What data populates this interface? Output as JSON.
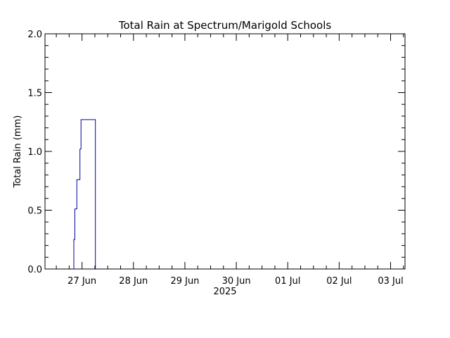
{
  "chart_data": {
    "type": "line",
    "title": "Total Rain at Spectrum/Marigold Schools",
    "xlabel": "2025",
    "ylabel": "Total Rain (mm)",
    "ylim": [
      0,
      2.0
    ],
    "xlim_days": [
      -0.72,
      6.28
    ],
    "x_ticks": [
      {
        "day": 0,
        "label": "27 Jun"
      },
      {
        "day": 1,
        "label": "28 Jun"
      },
      {
        "day": 2,
        "label": "29 Jun"
      },
      {
        "day": 3,
        "label": "30 Jun"
      },
      {
        "day": 4,
        "label": "01 Jul"
      },
      {
        "day": 5,
        "label": "02 Jul"
      },
      {
        "day": 6,
        "label": "03 Jul"
      }
    ],
    "y_ticks": [
      {
        "value": 0.0,
        "label": "0.0"
      },
      {
        "value": 0.5,
        "label": "0.5"
      },
      {
        "value": 1.0,
        "label": "1.0"
      },
      {
        "value": 1.5,
        "label": "1.5"
      },
      {
        "value": 2.0,
        "label": "2.0"
      }
    ],
    "grid": false,
    "color": "#0000a0",
    "series": [
      {
        "x": [
          -0.18,
          -0.16,
          -0.14,
          -0.1,
          -0.04,
          -0.02,
          0.04,
          0.26
        ],
        "y": [
          0,
          0.25,
          0.51,
          0.76,
          1.02,
          1.27,
          1.27,
          0
        ]
      }
    ]
  }
}
